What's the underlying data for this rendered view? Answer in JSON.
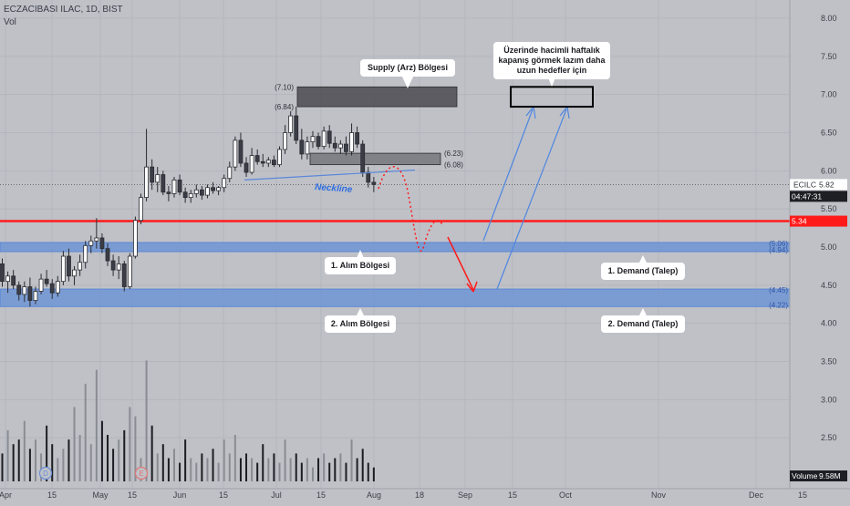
{
  "header": {
    "symbol_line": "ECZACIBASI ILAC, 1D, BIST",
    "vol_label": "Vol"
  },
  "colors": {
    "background": "#bfc1c7",
    "up_candle": "#ffffff",
    "down_candle": "#3b3d46",
    "support_line": "#ff1a1a",
    "demand_zone": "#6f95d4",
    "supply_zone": "#4a4a50",
    "arrow_blue": "#4f86e0",
    "arrow_red": "#ff1a1a",
    "neckline": "#5b87d9"
  },
  "chart_data": {
    "type": "candlestick",
    "y_axis": {
      "min": 2.0,
      "max": 8.0,
      "ticks": [
        "8.00",
        "7.50",
        "7.00",
        "6.50",
        "6.00",
        "5.50",
        "5.00",
        "4.50",
        "4.00",
        "3.50",
        "3.00",
        "2.50"
      ]
    },
    "x_axis": {
      "ticks": [
        "Apr",
        "15",
        "May",
        "15",
        "Jun",
        "15",
        "Jul",
        "15",
        "Aug",
        "18",
        "Sep",
        "15",
        "Oct",
        "Nov",
        "Dec",
        "15"
      ]
    },
    "candles": [
      {
        "o": 4.78,
        "h": 4.85,
        "l": 4.48,
        "c": 4.55
      },
      {
        "o": 4.55,
        "h": 4.68,
        "l": 4.4,
        "c": 4.62
      },
      {
        "o": 4.62,
        "h": 4.7,
        "l": 4.45,
        "c": 4.5
      },
      {
        "o": 4.5,
        "h": 4.55,
        "l": 4.3,
        "c": 4.38
      },
      {
        "o": 4.38,
        "h": 4.55,
        "l": 4.28,
        "c": 4.48
      },
      {
        "o": 4.48,
        "h": 4.6,
        "l": 4.22,
        "c": 4.3
      },
      {
        "o": 4.3,
        "h": 4.48,
        "l": 4.25,
        "c": 4.42
      },
      {
        "o": 4.42,
        "h": 4.65,
        "l": 4.38,
        "c": 4.58
      },
      {
        "o": 4.58,
        "h": 4.7,
        "l": 4.48,
        "c": 4.52
      },
      {
        "o": 4.52,
        "h": 4.58,
        "l": 4.32,
        "c": 4.4
      },
      {
        "o": 4.4,
        "h": 4.62,
        "l": 4.35,
        "c": 4.55
      },
      {
        "o": 4.55,
        "h": 4.95,
        "l": 4.5,
        "c": 4.88
      },
      {
        "o": 4.88,
        "h": 4.98,
        "l": 4.55,
        "c": 4.62
      },
      {
        "o": 4.62,
        "h": 4.75,
        "l": 4.5,
        "c": 4.7
      },
      {
        "o": 4.7,
        "h": 4.9,
        "l": 4.62,
        "c": 4.8
      },
      {
        "o": 4.8,
        "h": 5.08,
        "l": 4.72,
        "c": 5.02
      },
      {
        "o": 5.02,
        "h": 5.15,
        "l": 4.92,
        "c": 5.08
      },
      {
        "o": 5.08,
        "h": 5.38,
        "l": 4.98,
        "c": 5.12
      },
      {
        "o": 5.12,
        "h": 5.18,
        "l": 4.92,
        "c": 4.98
      },
      {
        "o": 4.98,
        "h": 5.05,
        "l": 4.75,
        "c": 4.82
      },
      {
        "o": 4.82,
        "h": 4.9,
        "l": 4.62,
        "c": 4.7
      },
      {
        "o": 4.7,
        "h": 4.88,
        "l": 4.58,
        "c": 4.78
      },
      {
        "o": 4.78,
        "h": 4.82,
        "l": 4.42,
        "c": 4.48
      },
      {
        "o": 4.48,
        "h": 4.92,
        "l": 4.45,
        "c": 4.88
      },
      {
        "o": 4.88,
        "h": 5.4,
        "l": 4.85,
        "c": 5.35
      },
      {
        "o": 5.35,
        "h": 5.7,
        "l": 5.3,
        "c": 5.65
      },
      {
        "o": 5.65,
        "h": 6.55,
        "l": 5.6,
        "c": 6.05
      },
      {
        "o": 6.05,
        "h": 6.15,
        "l": 5.75,
        "c": 5.85
      },
      {
        "o": 5.85,
        "h": 6.05,
        "l": 5.72,
        "c": 5.95
      },
      {
        "o": 5.95,
        "h": 6.0,
        "l": 5.68,
        "c": 5.72
      },
      {
        "o": 5.72,
        "h": 5.8,
        "l": 5.6,
        "c": 5.7
      },
      {
        "o": 5.7,
        "h": 5.92,
        "l": 5.65,
        "c": 5.88
      },
      {
        "o": 5.88,
        "h": 5.95,
        "l": 5.68,
        "c": 5.72
      },
      {
        "o": 5.72,
        "h": 5.78,
        "l": 5.58,
        "c": 5.65
      },
      {
        "o": 5.65,
        "h": 5.75,
        "l": 5.58,
        "c": 5.7
      },
      {
        "o": 5.7,
        "h": 5.82,
        "l": 5.65,
        "c": 5.75
      },
      {
        "o": 5.75,
        "h": 5.8,
        "l": 5.62,
        "c": 5.68
      },
      {
        "o": 5.68,
        "h": 5.82,
        "l": 5.64,
        "c": 5.78
      },
      {
        "o": 5.78,
        "h": 5.85,
        "l": 5.7,
        "c": 5.74
      },
      {
        "o": 5.74,
        "h": 5.8,
        "l": 5.68,
        "c": 5.78
      },
      {
        "o": 5.78,
        "h": 5.95,
        "l": 5.72,
        "c": 5.9
      },
      {
        "o": 5.9,
        "h": 6.12,
        "l": 5.85,
        "c": 6.05
      },
      {
        "o": 6.05,
        "h": 6.45,
        "l": 6.0,
        "c": 6.4
      },
      {
        "o": 6.4,
        "h": 6.5,
        "l": 6.05,
        "c": 6.1
      },
      {
        "o": 6.1,
        "h": 6.18,
        "l": 5.92,
        "c": 5.98
      },
      {
        "o": 5.98,
        "h": 6.3,
        "l": 5.95,
        "c": 6.2
      },
      {
        "o": 6.2,
        "h": 6.28,
        "l": 6.08,
        "c": 6.12
      },
      {
        "o": 6.12,
        "h": 6.22,
        "l": 6.05,
        "c": 6.1
      },
      {
        "o": 6.1,
        "h": 6.18,
        "l": 6.05,
        "c": 6.14
      },
      {
        "o": 6.14,
        "h": 6.2,
        "l": 6.05,
        "c": 6.08
      },
      {
        "o": 6.08,
        "h": 6.32,
        "l": 6.05,
        "c": 6.28
      },
      {
        "o": 6.28,
        "h": 6.6,
        "l": 6.22,
        "c": 6.5
      },
      {
        "o": 6.5,
        "h": 6.78,
        "l": 6.45,
        "c": 6.72
      },
      {
        "o": 6.72,
        "h": 6.84,
        "l": 6.35,
        "c": 6.4
      },
      {
        "o": 6.4,
        "h": 6.55,
        "l": 6.15,
        "c": 6.22
      },
      {
        "o": 6.22,
        "h": 6.45,
        "l": 6.15,
        "c": 6.38
      },
      {
        "o": 6.38,
        "h": 6.52,
        "l": 6.3,
        "c": 6.45
      },
      {
        "o": 6.45,
        "h": 6.5,
        "l": 6.28,
        "c": 6.32
      },
      {
        "o": 6.32,
        "h": 6.58,
        "l": 6.28,
        "c": 6.52
      },
      {
        "o": 6.52,
        "h": 6.6,
        "l": 6.3,
        "c": 6.36
      },
      {
        "o": 6.36,
        "h": 6.45,
        "l": 6.25,
        "c": 6.3
      },
      {
        "o": 6.3,
        "h": 6.4,
        "l": 6.22,
        "c": 6.35
      },
      {
        "o": 6.35,
        "h": 6.45,
        "l": 6.2,
        "c": 6.25
      },
      {
        "o": 6.25,
        "h": 6.62,
        "l": 6.2,
        "c": 6.5
      },
      {
        "o": 6.5,
        "h": 6.58,
        "l": 6.3,
        "c": 6.35
      },
      {
        "o": 6.35,
        "h": 6.4,
        "l": 5.92,
        "c": 5.98
      },
      {
        "o": 5.98,
        "h": 6.05,
        "l": 5.78,
        "c": 5.85
      },
      {
        "o": 5.85,
        "h": 5.92,
        "l": 5.72,
        "c": 5.82
      }
    ],
    "volumes": [
      0.6,
      1.1,
      0.8,
      0.9,
      1.3,
      0.7,
      0.9,
      0.6,
      1.2,
      0.8,
      0.5,
      0.7,
      0.9,
      1.6,
      1.0,
      2.1,
      0.8,
      2.4,
      1.3,
      1.0,
      0.7,
      0.9,
      1.1,
      1.6,
      1.4,
      0.5,
      2.6,
      1.2,
      0.6,
      0.8,
      0.5,
      0.7,
      0.4,
      0.9,
      0.5,
      0.4,
      0.6,
      0.5,
      0.7,
      0.4,
      0.9,
      0.6,
      1.0,
      0.5,
      0.6,
      0.5,
      0.4,
      0.8,
      0.5,
      0.6,
      0.4,
      0.9,
      0.5,
      0.6,
      0.4,
      0.5,
      0.3,
      0.5,
      0.6,
      0.4,
      0.5,
      0.6,
      0.4,
      0.9,
      0.5,
      0.7,
      0.4,
      0.3
    ],
    "price_lines": {
      "last": "5.82",
      "support": "5.34"
    },
    "last_label": "ECILC",
    "countdown": "04:47:31",
    "volume_label": "Volume",
    "volume_value": "9.58M",
    "supply_zones": [
      {
        "top": 7.1,
        "bottom": 6.84,
        "label_top": "(7.10)",
        "label_bottom": "(6.84)"
      },
      {
        "top": 6.23,
        "bottom": 6.08,
        "label_top": "(6.23)",
        "label_bottom": "(6.08)"
      }
    ],
    "demand_zones": [
      {
        "top": 5.06,
        "bottom": 4.94,
        "label_top": "(5.06)",
        "label_bottom": "(4.94)"
      },
      {
        "top": 4.45,
        "bottom": 4.22,
        "label_top": "(4.45)",
        "label_bottom": "(4.22)"
      }
    ],
    "target_box": {
      "top": 7.1,
      "bottom": 6.84
    },
    "annotations": {
      "supply": "Supply (Arz) Bölgesi",
      "note_line1": "Üzerinde hacimli haftalık",
      "note_line2": "kapanış görmek lazım daha",
      "note_line3": "uzun hedefler için",
      "neckline": "Neckline",
      "buy1": "1. Alım Bölgesi",
      "buy2": "2. Alım Bölgesi",
      "demand1": "1. Demand (Talep)",
      "demand2": "2. Demand (Talep)"
    },
    "event_markers": [
      "D",
      "E"
    ]
  }
}
